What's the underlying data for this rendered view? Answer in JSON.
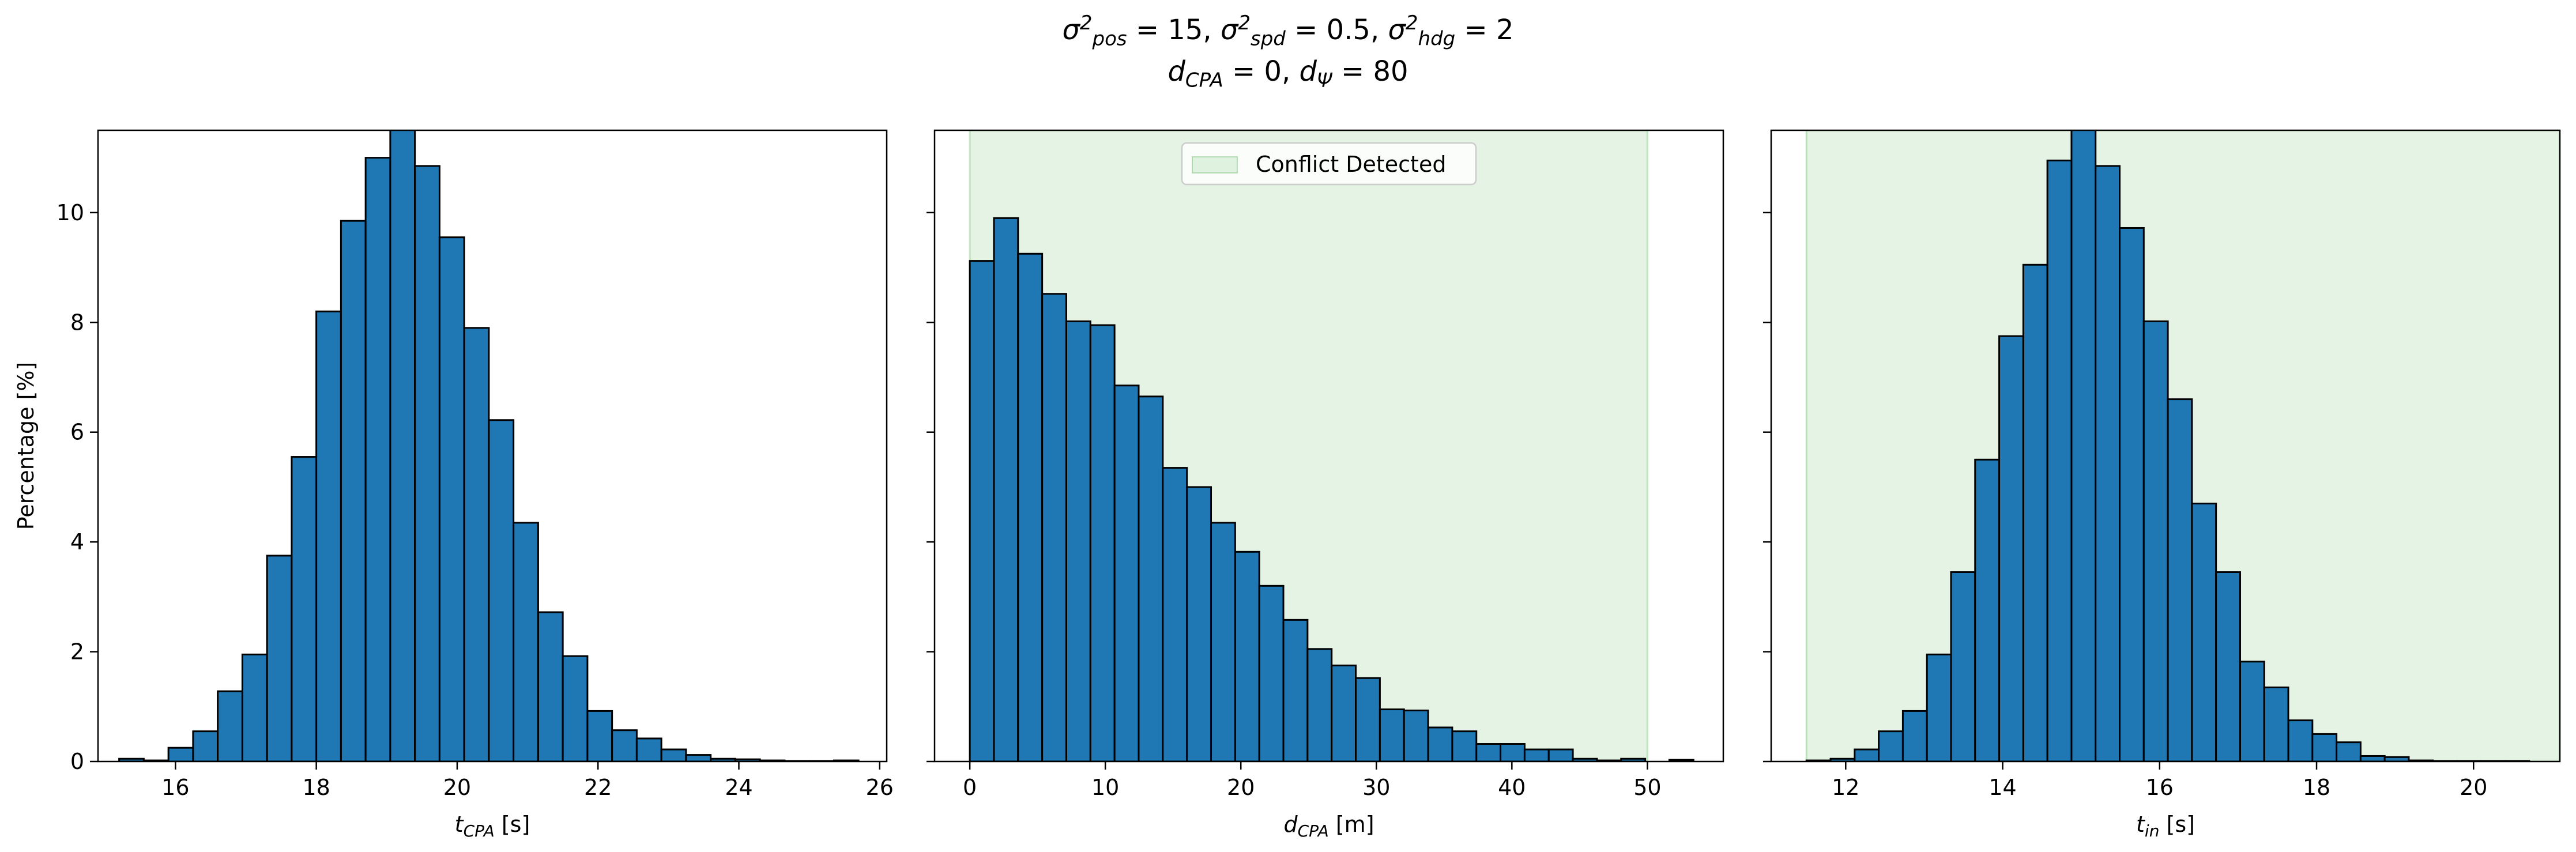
{
  "figure": {
    "title_line1": "σ²pos = 15, σ²spd = 0.5, σ²hdg = 2",
    "title_line2": "dCPA = 0, dΨ = 80",
    "title1_parts": [
      {
        "t": "σ",
        "s": ""
      },
      {
        "t": "2",
        "s": "sup"
      },
      {
        "t": "pos",
        "s": "sub"
      },
      {
        "t": " = 15, ",
        "s": ""
      },
      {
        "t": "σ",
        "s": ""
      },
      {
        "t": "2",
        "s": "sup"
      },
      {
        "t": "spd",
        "s": "sub"
      },
      {
        "t": " = 0.5, ",
        "s": ""
      },
      {
        "t": "σ",
        "s": ""
      },
      {
        "t": "2",
        "s": "sup"
      },
      {
        "t": "hdg",
        "s": "sub"
      },
      {
        "t": " = 2",
        "s": ""
      }
    ],
    "title2_parts": [
      {
        "t": "d",
        "s": ""
      },
      {
        "t": "CPA",
        "s": "sub"
      },
      {
        "t": " = 0, ",
        "s": ""
      },
      {
        "t": "d",
        "s": ""
      },
      {
        "t": "Ψ",
        "s": "sub"
      },
      {
        "t": " = 80",
        "s": ""
      }
    ],
    "ylabel": "Percentage [%]",
    "shared_ylim": [
      0,
      11.5
    ],
    "y_ticks": [
      0,
      2,
      4,
      6,
      8,
      10
    ],
    "bar_color": "#1f77b4",
    "edge_color": "#000000",
    "region_color": "#2ca02c"
  },
  "chart_data": [
    {
      "type": "bar",
      "name": "t_cpa",
      "xlabel": "tCPA [s]",
      "xlabel_parts": [
        {
          "t": "t",
          "s": ""
        },
        {
          "t": "CPA",
          "s": "sub"
        },
        {
          "t": " [s]",
          "s": ""
        }
      ],
      "xlim": [
        14.9,
        26.1
      ],
      "x_ticks": [
        16,
        18,
        20,
        22,
        24,
        26
      ],
      "bin_start": 15.2,
      "bin_width": 0.35,
      "values": [
        0.05,
        0.02,
        0.25,
        0.55,
        1.28,
        1.95,
        3.75,
        5.55,
        8.2,
        9.85,
        11.0,
        11.6,
        10.85,
        9.55,
        7.9,
        6.22,
        4.35,
        2.72,
        1.92,
        0.92,
        0.57,
        0.42,
        0.22,
        0.12,
        0.05,
        0.04,
        0.02,
        0.01,
        0.01,
        0.02
      ],
      "region": null,
      "legend": null
    },
    {
      "type": "bar",
      "name": "d_cpa",
      "xlabel": "dCPA [m]",
      "xlabel_parts": [
        {
          "t": "d",
          "s": ""
        },
        {
          "t": "CPA",
          "s": "sub"
        },
        {
          "t": " [m]",
          "s": ""
        }
      ],
      "xlim": [
        -2.6,
        55.6
      ],
      "x_ticks": [
        0,
        10,
        20,
        30,
        40,
        50
      ],
      "bin_start": 0,
      "bin_width": 1.78,
      "values": [
        9.12,
        9.9,
        9.25,
        8.52,
        8.02,
        7.95,
        6.85,
        6.65,
        5.35,
        5.0,
        4.35,
        3.82,
        3.2,
        2.58,
        2.05,
        1.75,
        1.52,
        0.95,
        0.93,
        0.62,
        0.55,
        0.32,
        0.32,
        0.22,
        0.22,
        0.05,
        0.02,
        0.05,
        0.0,
        0.03
      ],
      "region": [
        0,
        50
      ],
      "legend": {
        "label": "Conflict Detected",
        "position": "top-center"
      }
    },
    {
      "type": "bar",
      "name": "t_in",
      "xlabel": "tin [s]",
      "xlabel_parts": [
        {
          "t": "t",
          "s": ""
        },
        {
          "t": "in",
          "s": "sub"
        },
        {
          "t": " [s]",
          "s": ""
        }
      ],
      "xlim": [
        11.05,
        21.1
      ],
      "x_ticks": [
        12,
        14,
        16,
        18,
        20
      ],
      "bin_start": 11.5,
      "bin_width": 0.307,
      "values": [
        0.02,
        0.05,
        0.22,
        0.55,
        0.92,
        1.95,
        3.45,
        5.5,
        7.75,
        9.05,
        10.95,
        11.55,
        10.85,
        9.72,
        8.02,
        6.6,
        4.7,
        3.45,
        1.82,
        1.35,
        0.75,
        0.5,
        0.35,
        0.1,
        0.08,
        0.02,
        0.01,
        0.01,
        0.01,
        0.01
      ],
      "region": [
        11.5,
        null
      ],
      "legend": null
    }
  ]
}
